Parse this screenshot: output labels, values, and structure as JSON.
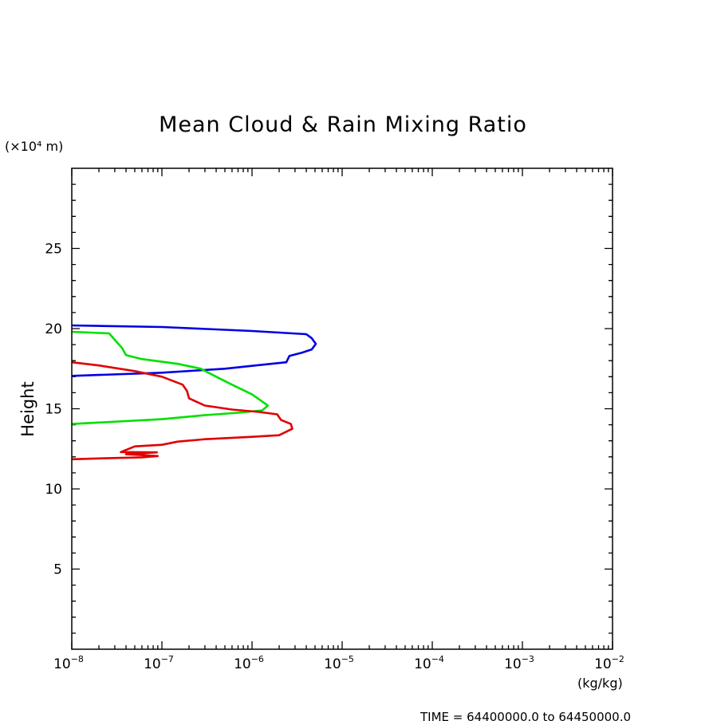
{
  "chart_data": {
    "type": "line",
    "title": "Mean Cloud & Rain Mixing Ratio",
    "ylabel": "Height",
    "y_unit": "(×10⁴ m)",
    "x_unit": "(kg/kg)",
    "footer": "TIME = 64400000.0 to 64450000.0",
    "x_scale": "log",
    "xlim": [
      1e-08,
      0.01
    ],
    "ylim": [
      0,
      30
    ],
    "x_tick_labels": [
      {
        "base": "10",
        "exp": "−8"
      },
      {
        "base": "10",
        "exp": "−7"
      },
      {
        "base": "10",
        "exp": "−6"
      },
      {
        "base": "10",
        "exp": "−5"
      },
      {
        "base": "10",
        "exp": "−4"
      },
      {
        "base": "10",
        "exp": "−3"
      },
      {
        "base": "10",
        "exp": "−2"
      }
    ],
    "y_tick_labels": [
      "5",
      "10",
      "15",
      "20",
      "25"
    ],
    "y_ticks": [
      5,
      10,
      15,
      20,
      25
    ],
    "series": [
      {
        "color": "#0000e0",
        "x": [
          1e-08,
          1e-07,
          4e-07,
          1e-06,
          2e-06,
          4e-06,
          4.6e-06,
          5.1e-06,
          4.6e-06,
          3.6e-06,
          2.6e-06,
          2.4e-06,
          1.1e-06,
          5e-07,
          1e-07,
          1e-08
        ],
        "y": [
          20.2,
          20.1,
          19.95,
          19.85,
          19.75,
          19.65,
          19.4,
          19.05,
          18.7,
          18.5,
          18.3,
          17.9,
          17.7,
          17.5,
          17.25,
          17.05
        ]
      },
      {
        "color": "#00e000",
        "x": [
          1e-08,
          2.6e-08,
          3e-08,
          3.6e-08,
          4e-08,
          6e-08,
          1.5e-07,
          2.7e-07,
          4e-07,
          6e-07,
          1e-06,
          1.5e-06,
          1.3e-06,
          7e-07,
          3e-07,
          1e-07,
          1e-08
        ],
        "y": [
          19.8,
          19.7,
          19.3,
          18.8,
          18.35,
          18.1,
          17.8,
          17.5,
          17.0,
          16.5,
          15.9,
          15.2,
          14.9,
          14.75,
          14.6,
          14.35,
          14.05
        ]
      },
      {
        "color": "#e00000",
        "x": [
          1e-08,
          2e-08,
          5e-08,
          1e-07,
          1.7e-07,
          1.9e-07,
          2e-07,
          3e-07,
          6e-07,
          1.2e-06,
          1.9e-06,
          2.1e-06,
          2.7e-06,
          2.8e-06,
          2e-06,
          1e-06,
          3e-07,
          1.5e-07,
          1e-07,
          5e-08,
          3.5e-08,
          8.8e-08,
          4e-08,
          9e-08,
          6e-08,
          2e-08,
          1e-08
        ],
        "y": [
          17.9,
          17.7,
          17.35,
          17.0,
          16.5,
          16.1,
          15.65,
          15.2,
          14.95,
          14.8,
          14.65,
          14.3,
          14.05,
          13.75,
          13.35,
          13.25,
          13.1,
          12.95,
          12.75,
          12.65,
          12.3,
          12.28,
          12.17,
          12.05,
          11.97,
          11.9,
          11.85
        ]
      }
    ]
  }
}
